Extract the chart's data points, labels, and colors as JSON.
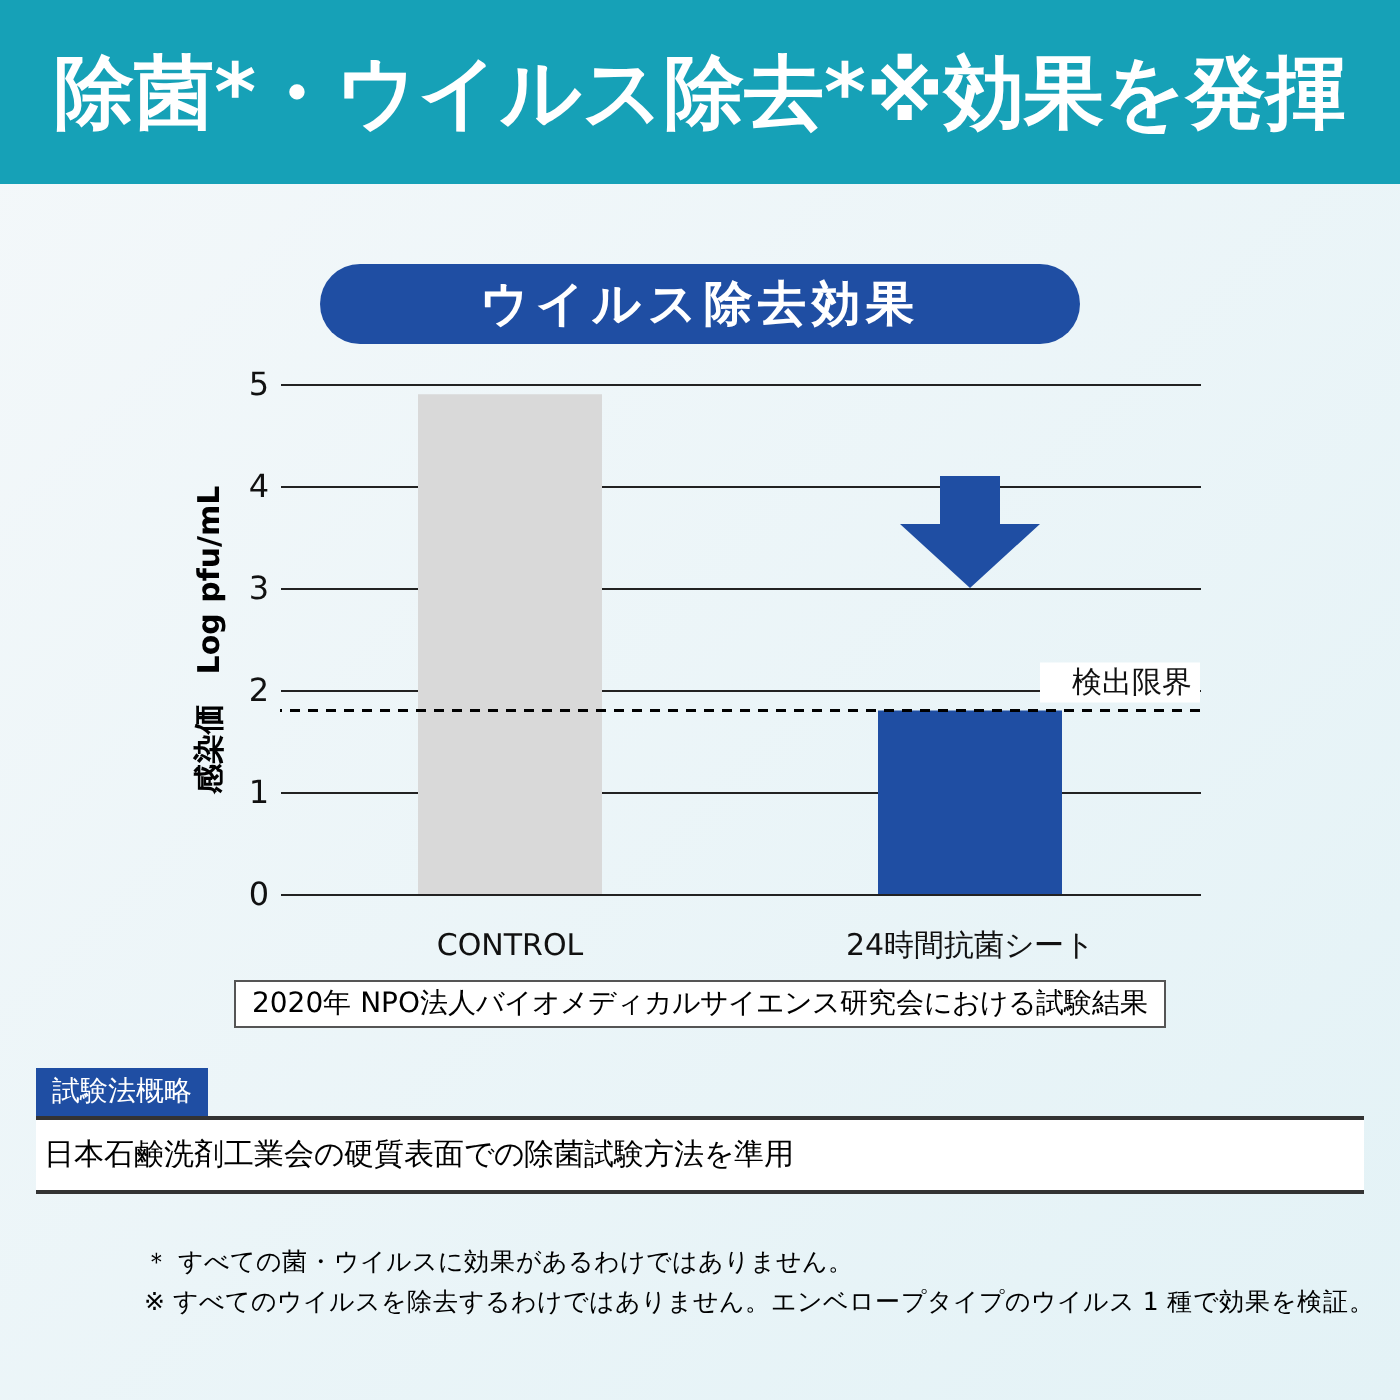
{
  "chart_data": {
    "type": "bar",
    "title": "除菌*・ウイルス除去*※効果を発揮",
    "subtitle": "ウイルス除去効果",
    "ylabel": "感染価　Log pfu/mL",
    "categories": [
      "CONTROL",
      "24時間抗菌シート"
    ],
    "values": [
      4.9,
      1.8
    ],
    "colors": [
      "#d9d9d9",
      "#1f4ea3"
    ],
    "ylim": [
      0,
      5
    ],
    "yticks": [
      0,
      1,
      2,
      3,
      4,
      5
    ],
    "grid": "y",
    "ref_lines": [
      {
        "axis": "y",
        "value": 1.8,
        "label": "検出限界",
        "line_style": "dashed",
        "color": "#000000"
      }
    ],
    "annotations": [
      "2020年 NPO法人バイオメディカルサイエンス研究会における試験結果",
      "試験法概略",
      "日本石鹸洗剤工業会の硬質表面での除菌試験方法を準用",
      "＊ すべての菌・ウイルスに効果があるわけではありません。",
      "※ すべてのウイルスを除去するわけではありません。エンベロープタイプのウイルス 1 種で効果を検証。"
    ]
  }
}
